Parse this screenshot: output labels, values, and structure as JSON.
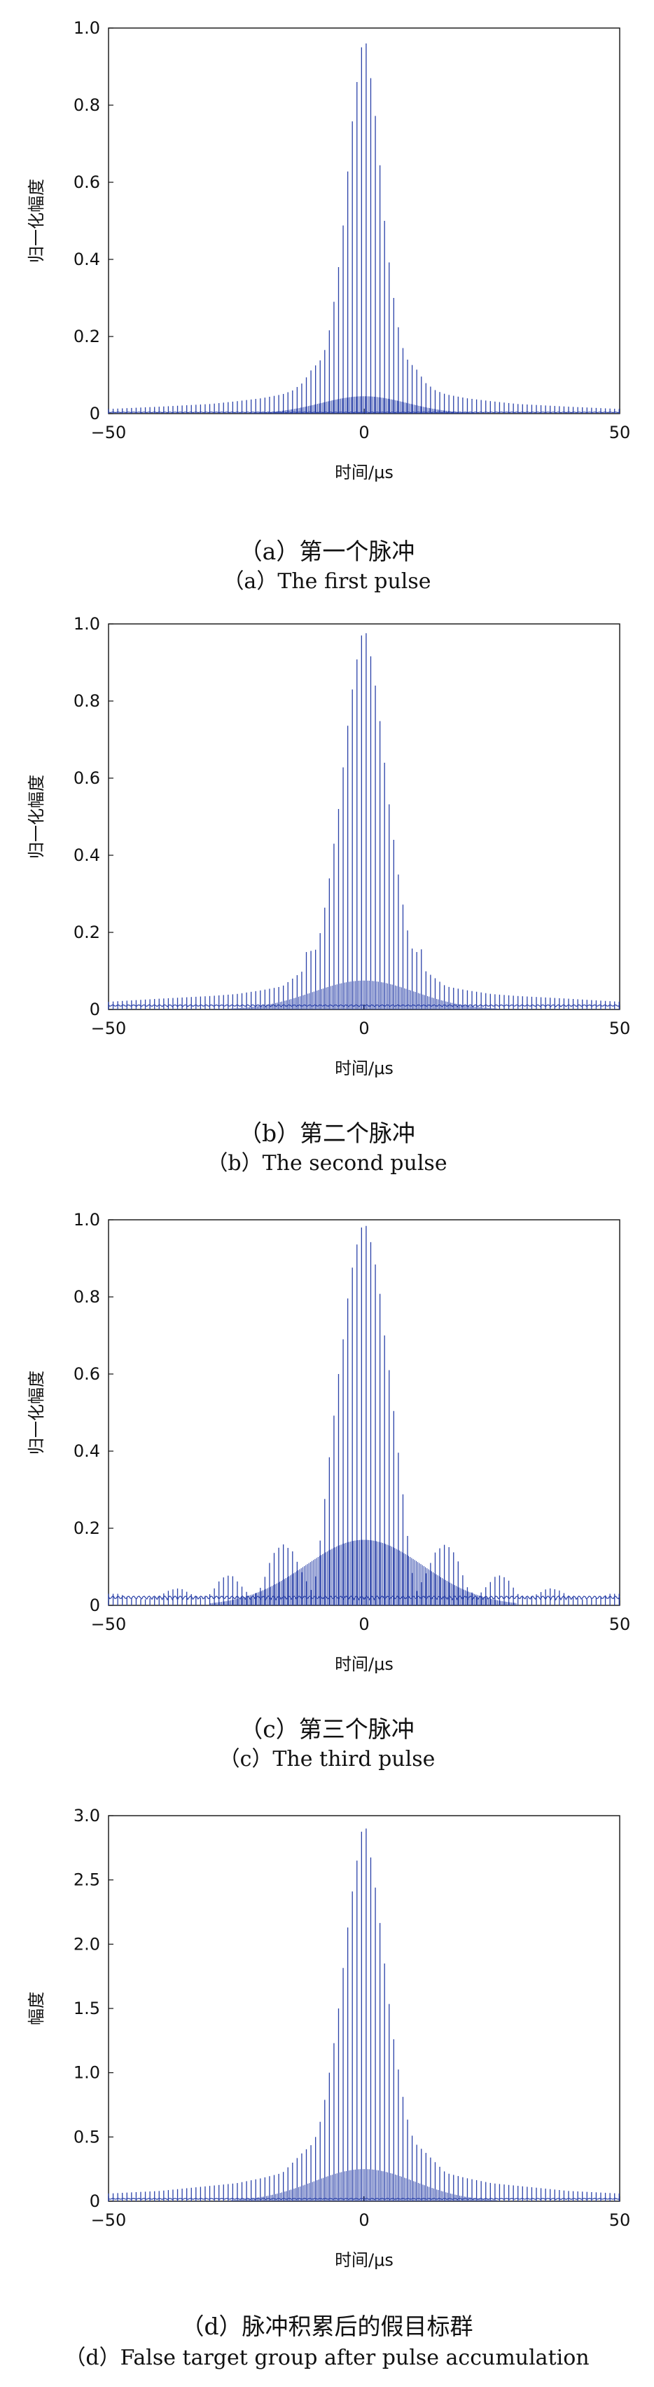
{
  "chart_data": [
    {
      "type": "line",
      "id": "a",
      "xlabel": "时间/μs",
      "ylabel": "归一化幅度",
      "xlim": [
        -50,
        50
      ],
      "ylim": [
        0,
        1.0
      ],
      "xticks": [
        "−50",
        "0",
        "50"
      ],
      "yticks": [
        "0",
        "0.2",
        "0.4",
        "0.6",
        "0.8",
        "1.0"
      ],
      "caption_zh": "（a）第一个脉冲",
      "caption_en": "（a）The first pulse",
      "line_color": "#2a41a8",
      "envelope_points": [
        [
          0,
          1.0
        ],
        [
          1,
          0.9
        ],
        [
          2,
          0.8
        ],
        [
          3,
          0.66
        ],
        [
          4,
          0.5
        ],
        [
          5,
          0.38
        ],
        [
          6,
          0.28
        ],
        [
          7,
          0.2
        ],
        [
          8,
          0.15
        ],
        [
          9,
          0.13
        ],
        [
          10,
          0.12
        ],
        [
          12,
          0.08
        ],
        [
          14,
          0.06
        ],
        [
          16,
          0.05
        ],
        [
          20,
          0.04
        ],
        [
          25,
          0.032
        ],
        [
          30,
          0.025
        ],
        [
          40,
          0.018
        ],
        [
          50,
          0.012
        ]
      ],
      "baseline_level": 0.045,
      "baseline_width": 22,
      "floor_level": 0.0
    },
    {
      "type": "line",
      "id": "b",
      "xlabel": "时间/μs",
      "ylabel": "归一化幅度",
      "xlim": [
        -50,
        50
      ],
      "ylim": [
        0,
        1.0
      ],
      "xticks": [
        "−50",
        "0",
        "50"
      ],
      "yticks": [
        "0",
        "0.2",
        "0.4",
        "0.6",
        "0.8",
        "1.0"
      ],
      "caption_zh": "（b）第二个脉冲",
      "caption_en": "（b）The second pulse",
      "line_color": "#2a41a8",
      "envelope_points": [
        [
          0,
          1.0
        ],
        [
          1,
          0.94
        ],
        [
          2,
          0.86
        ],
        [
          3,
          0.76
        ],
        [
          4,
          0.64
        ],
        [
          5,
          0.52
        ],
        [
          6,
          0.42
        ],
        [
          7,
          0.32
        ],
        [
          8,
          0.24
        ],
        [
          9,
          0.17
        ],
        [
          10,
          0.14
        ],
        [
          11,
          0.17
        ],
        [
          12,
          0.1
        ],
        [
          14,
          0.08
        ],
        [
          16,
          0.06
        ],
        [
          20,
          0.05
        ],
        [
          25,
          0.04
        ],
        [
          30,
          0.035
        ],
        [
          40,
          0.028
        ],
        [
          50,
          0.02
        ]
      ],
      "baseline_level": 0.075,
      "baseline_width": 26,
      "floor_level": 0.008
    },
    {
      "type": "line",
      "id": "c",
      "xlabel": "时间/μs",
      "ylabel": "归一化幅度",
      "xlim": [
        -50,
        50
      ],
      "ylim": [
        0,
        1.0
      ],
      "xticks": [
        "−50",
        "0",
        "50"
      ],
      "yticks": [
        "0",
        "0.2",
        "0.4",
        "0.6",
        "0.8",
        "1.0"
      ],
      "caption_zh": "（c）第三个脉冲",
      "caption_en": "（c）The third pulse",
      "line_color": "#2a41a8",
      "envelope_points": [
        [
          0,
          1.0
        ],
        [
          1,
          0.96
        ],
        [
          2,
          0.9
        ],
        [
          3,
          0.82
        ],
        [
          4,
          0.7
        ],
        [
          5,
          0.6
        ],
        [
          6,
          0.48
        ],
        [
          7,
          0.36
        ],
        [
          8,
          0.24
        ],
        [
          9,
          0.12
        ],
        [
          10,
          0.03
        ],
        [
          12,
          0.08
        ],
        [
          14,
          0.14
        ],
        [
          16,
          0.16
        ],
        [
          18,
          0.13
        ],
        [
          20,
          0.05
        ],
        [
          22,
          0.02
        ],
        [
          24,
          0.05
        ],
        [
          26,
          0.08
        ],
        [
          28,
          0.07
        ],
        [
          30,
          0.03
        ],
        [
          32,
          0.02
        ],
        [
          34,
          0.03
        ],
        [
          36,
          0.045
        ],
        [
          38,
          0.04
        ],
        [
          40,
          0.025
        ],
        [
          43,
          0.015
        ],
        [
          46,
          0.02
        ],
        [
          48,
          0.03
        ],
        [
          50,
          0.03
        ]
      ],
      "baseline_level": 0.17,
      "baseline_width": 30,
      "floor_level": 0.02
    },
    {
      "type": "line",
      "id": "d",
      "xlabel": "时间/μs",
      "ylabel": "幅度",
      "xlim": [
        -50,
        50
      ],
      "ylim": [
        0,
        3.0
      ],
      "xticks": [
        "−50",
        "0",
        "50"
      ],
      "yticks": [
        "0",
        "0.5",
        "1.0",
        "1.5",
        "2.0",
        "2.5",
        "3.0"
      ],
      "caption_zh": "（d）脉冲积累后的假目标群",
      "caption_en": "（d）False target group after pulse accumulation",
      "line_color": "#2a41a8",
      "envelope_points": [
        [
          0,
          3.0
        ],
        [
          1,
          2.75
        ],
        [
          2,
          2.5
        ],
        [
          3,
          2.2
        ],
        [
          4,
          1.85
        ],
        [
          5,
          1.5
        ],
        [
          6,
          1.2
        ],
        [
          7,
          0.95
        ],
        [
          8,
          0.72
        ],
        [
          9,
          0.55
        ],
        [
          10,
          0.45
        ],
        [
          12,
          0.38
        ],
        [
          14,
          0.3
        ],
        [
          16,
          0.22
        ],
        [
          20,
          0.18
        ],
        [
          25,
          0.14
        ],
        [
          30,
          0.12
        ],
        [
          40,
          0.08
        ],
        [
          50,
          0.06
        ]
      ],
      "baseline_level": 0.25,
      "baseline_width": 26,
      "floor_level": 0.01
    }
  ]
}
